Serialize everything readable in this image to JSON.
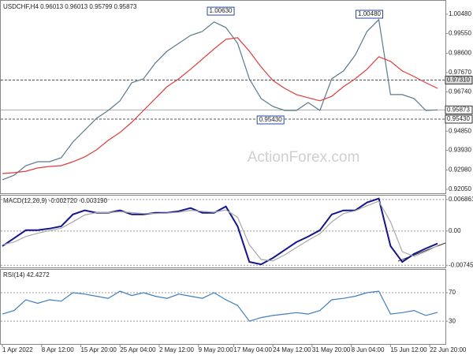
{
  "chart_data": [
    {
      "type": "line",
      "title": "USDCHF,H4 0.96013 0.96013 0.95799 0.95873",
      "watermark": "ActionForex.com",
      "x": [
        0,
        3,
        6,
        9,
        12,
        15,
        18,
        21,
        24,
        27,
        30,
        33,
        36,
        39,
        42,
        45,
        48,
        51,
        54,
        57,
        60,
        63,
        66,
        69,
        72,
        75,
        78,
        81,
        84,
        87,
        90,
        93,
        96,
        99,
        102,
        105,
        108,
        111
      ],
      "xlim": [
        0,
        113
      ],
      "ylim": [
        0.9186,
        1.0109
      ],
      "yticks": [
        {
          "value": 1.0048,
          "label": "1.00480"
        },
        {
          "value": 0.9955,
          "label": "0.99550"
        },
        {
          "value": 0.986,
          "label": "0.98600"
        },
        {
          "value": 0.9767,
          "label": "0.97670"
        },
        {
          "value": 0.9674,
          "label": "0.96740"
        },
        {
          "value": 0.9485,
          "label": "0.94850"
        },
        {
          "value": 0.9393,
          "label": "0.93930"
        },
        {
          "value": 0.9298,
          "label": "0.92980"
        },
        {
          "value": 0.9205,
          "label": "0.92050"
        }
      ],
      "series": [
        {
          "color": "#5b7a8c",
          "values": [
            0.9251,
            0.9273,
            0.9319,
            0.9338,
            0.9338,
            0.9357,
            0.9433,
            0.949,
            0.9547,
            0.9585,
            0.9631,
            0.9718,
            0.9737,
            0.9813,
            0.987,
            0.9908,
            0.9946,
            0.9965,
            1.0011,
            0.9984,
            0.9908,
            0.9737,
            0.9642,
            0.9604,
            0.9585,
            0.9585,
            0.9623,
            0.9585,
            0.9737,
            0.9775,
            0.9851,
            0.9965,
            1.0022,
            0.9661,
            0.9661,
            0.9642,
            0.9585,
            0.95873
          ]
        },
        {
          "color": "#e03c3c",
          "values": [
            0.9281,
            0.9285,
            0.9292,
            0.9308,
            0.9315,
            0.9319,
            0.9338,
            0.9361,
            0.9395,
            0.9441,
            0.9479,
            0.9528,
            0.9585,
            0.9642,
            0.9699,
            0.9737,
            0.9783,
            0.9832,
            0.9881,
            0.9927,
            0.9935,
            0.987,
            0.9794,
            0.9729,
            0.9691,
            0.9661,
            0.9646,
            0.9631,
            0.9653,
            0.9699,
            0.9737,
            0.9783,
            0.9843,
            0.9821,
            0.9775,
            0.9748,
            0.9718,
            0.9691
          ]
        }
      ],
      "peaks": [
        {
          "x": 55.7,
          "value": 1.0063,
          "label": "1.00630"
        },
        {
          "x": 93.6,
          "value": 1.0048,
          "label": "1.00480"
        },
        {
          "x": 68.4,
          "value": 0.9543,
          "label": "0.95430"
        }
      ],
      "levels": [
        {
          "value": 0.9731,
          "label": "0.97310"
        },
        {
          "value": 0.9543,
          "label": "0.95430"
        }
      ],
      "current": {
        "value": 0.95873,
        "label": "0.95873"
      }
    },
    {
      "type": "line",
      "title": "MACD(12,26,9) -0.002720 -0.003190",
      "x": [
        0,
        3,
        6,
        9,
        12,
        15,
        18,
        21,
        24,
        27,
        30,
        33,
        36,
        39,
        42,
        45,
        48,
        51,
        54,
        57,
        60,
        63,
        66,
        69,
        72,
        75,
        78,
        81,
        84,
        87,
        90,
        93,
        96,
        99,
        102,
        105,
        108,
        111
      ],
      "xlim": [
        0,
        113
      ],
      "ylim": [
        -0.0081,
        0.0077
      ],
      "yticks": [
        0.006861,
        {
          "value": 0,
          "label": "0.00"
        },
        -0.007454
      ],
      "series": [
        {
          "color": "#14148c",
          "values": [
            -0.00328,
            -0.00155,
            0.00017,
            0.00017,
            0.00052,
            0.00104,
            0.00362,
            0.00449,
            0.00397,
            0.00397,
            0.00449,
            0.00362,
            0.00362,
            0.00397,
            0.00397,
            0.00431,
            0.005,
            0.00397,
            0.00397,
            0.00535,
            0.00104,
            -0.00673,
            -0.00725,
            -0.00587,
            -0.00414,
            -0.00242,
            -0.00121,
            0.00017,
            0.00362,
            0.00449,
            0.00449,
            0.00621,
            0.00707,
            -0.00328,
            -0.00673,
            -0.005,
            -0.0038,
            -0.00272
          ]
        },
        {
          "color": "#a8a8a8",
          "values": [
            -0.003,
            -0.0024,
            -0.0012,
            -0.0005,
            0.0001,
            0.0006,
            0.002,
            0.0035,
            0.004,
            0.004,
            0.0042,
            0.004,
            0.0038,
            0.0038,
            0.0039,
            0.0041,
            0.0045,
            0.0043,
            0.0041,
            0.0046,
            0.003,
            -0.003,
            -0.0062,
            -0.0065,
            -0.0052,
            -0.0036,
            -0.002,
            -0.0006,
            0.002,
            0.0038,
            0.0044,
            0.0055,
            0.0065,
            0.002,
            -0.0045,
            -0.0055,
            -0.0045,
            -0.00319
          ]
        }
      ]
    },
    {
      "type": "line",
      "title": "RSI(14) 42.4272",
      "x": [
        0,
        3,
        6,
        9,
        12,
        15,
        18,
        21,
        24,
        27,
        30,
        33,
        36,
        39,
        42,
        45,
        48,
        51,
        54,
        57,
        60,
        63,
        66,
        69,
        72,
        75,
        78,
        81,
        84,
        87,
        90,
        93,
        96,
        99,
        102,
        105,
        108,
        111
      ],
      "xlim": [
        0,
        113
      ],
      "ylim": [
        -3,
        102
      ],
      "yticks": [
        70,
        30
      ],
      "xticks": [
        {
          "value": 0,
          "label": "1 Apr 2022"
        },
        {
          "value": 10,
          "label": "8 Apr 12:00"
        },
        {
          "value": 20,
          "label": "15 Apr 20:00"
        },
        {
          "value": 30,
          "label": "25 Apr 04:00"
        },
        {
          "value": 40,
          "label": "2 May 12:00"
        },
        {
          "value": 50,
          "label": "9 May 20:00"
        },
        {
          "value": 59,
          "label": "17 May 04:00"
        },
        {
          "value": 69,
          "label": "24 May 12:00"
        },
        {
          "value": 79,
          "label": "31 May 20:00"
        },
        {
          "value": 89,
          "label": "8 Jun 04:00"
        },
        {
          "value": 99,
          "label": "15 Jun 12:00"
        },
        {
          "value": 109,
          "label": "22 Jun 20:00"
        }
      ],
      "series": [
        {
          "color": "#3f7fc0",
          "values": [
            40,
            45,
            60,
            55,
            60,
            58,
            70,
            68,
            65,
            62,
            72,
            66,
            70,
            65,
            62,
            68,
            65,
            62,
            70,
            60,
            52,
            30,
            35,
            38,
            40,
            42,
            40,
            45,
            60,
            62,
            65,
            70,
            72,
            40,
            42,
            45,
            38,
            42.4272
          ]
        }
      ]
    }
  ]
}
